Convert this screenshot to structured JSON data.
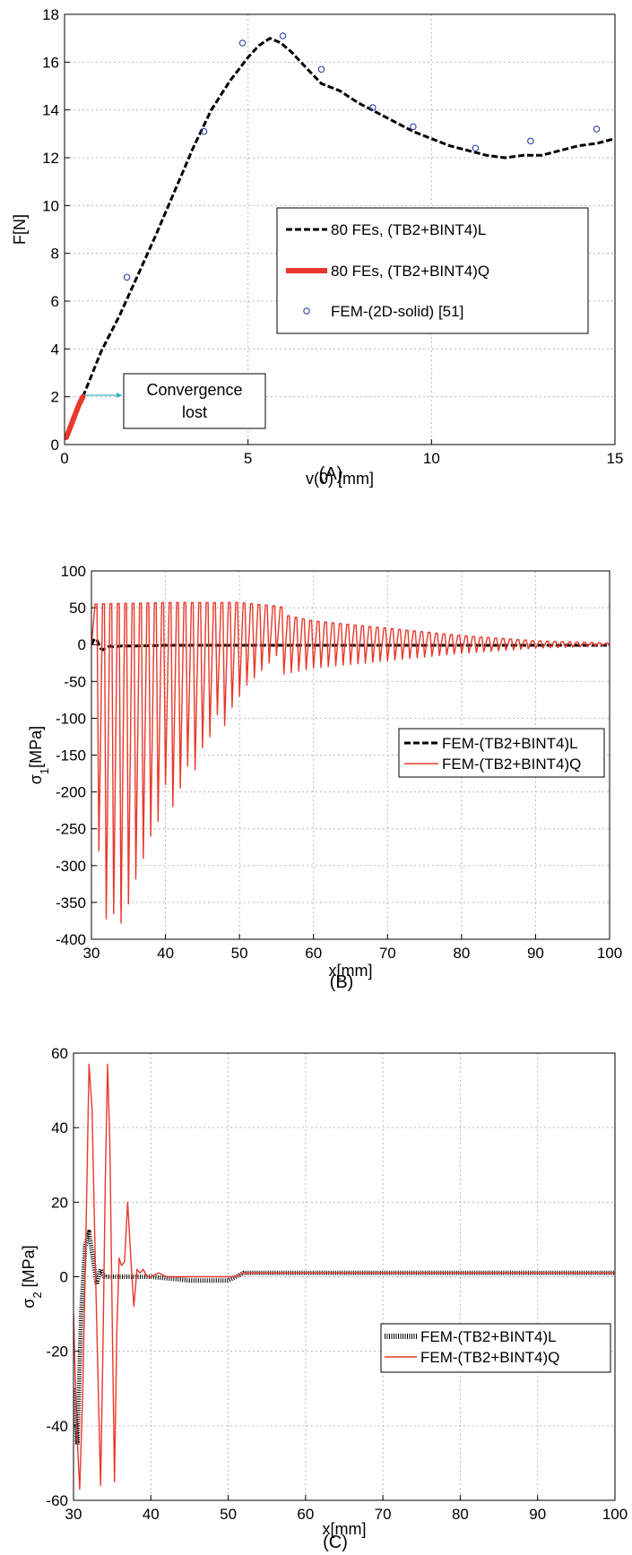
{
  "chart_data": [
    {
      "panel": "A",
      "type": "line",
      "caption": "(A)",
      "xlabel": "v(0) [mm]",
      "ylabel": "F[N]",
      "xlim": [
        0,
        15
      ],
      "ylim": [
        0,
        18
      ],
      "xticks": [
        0,
        5,
        10,
        15
      ],
      "yticks": [
        0,
        2,
        4,
        6,
        8,
        10,
        12,
        14,
        16,
        18
      ],
      "grid": true,
      "legend_position": "center-right",
      "annotation": {
        "lines": [
          "Convergence",
          "lost"
        ],
        "color": "#39b6c8"
      },
      "series": [
        {
          "name": "80 FEs, (TB2+BINT4)L",
          "style": "dashed",
          "color": "#000000",
          "x": [
            0.5,
            1.0,
            1.5,
            2.0,
            2.5,
            3.0,
            3.5,
            4.0,
            4.5,
            5.0,
            5.3,
            5.6,
            5.9,
            6.2,
            6.5,
            7.0,
            7.5,
            8.0,
            8.5,
            9.0,
            9.5,
            10.0,
            10.5,
            11.0,
            11.5,
            12.0,
            12.5,
            13.0,
            13.5,
            14.0,
            14.5,
            15.0
          ],
          "y": [
            2.0,
            3.9,
            5.4,
            7.1,
            8.8,
            10.6,
            12.4,
            14.0,
            15.2,
            16.2,
            16.7,
            17.0,
            16.8,
            16.4,
            15.9,
            15.1,
            14.8,
            14.3,
            13.9,
            13.5,
            13.1,
            12.8,
            12.5,
            12.3,
            12.1,
            12.0,
            12.1,
            12.1,
            12.3,
            12.5,
            12.6,
            12.8
          ]
        },
        {
          "name": "80 FEs, (TB2+BINT4)Q",
          "style": "thick-solid",
          "color": "#e8382b",
          "x": [
            0.05,
            0.1,
            0.2,
            0.3,
            0.4,
            0.5
          ],
          "y": [
            0.3,
            0.5,
            0.9,
            1.3,
            1.7,
            2.0
          ]
        },
        {
          "name": "FEM-(2D-solid) [51]",
          "style": "markers",
          "color": "#3040a8",
          "x": [
            1.7,
            3.8,
            4.85,
            5.95,
            7.0,
            8.4,
            9.5,
            11.2,
            12.7,
            14.5
          ],
          "y": [
            7.0,
            13.1,
            16.8,
            17.1,
            15.7,
            14.1,
            13.3,
            12.4,
            12.7,
            13.2
          ]
        }
      ]
    },
    {
      "panel": "B",
      "type": "line",
      "caption": "(B)",
      "xlabel": "x[mm]",
      "ylabel": "σ1[MPa]",
      "ylabel_main": "σ",
      "ylabel_sub": "1",
      "ylabel_unit": "[MPa]",
      "xlim": [
        30,
        100
      ],
      "ylim": [
        -400,
        100
      ],
      "xticks": [
        30,
        40,
        50,
        60,
        70,
        80,
        90,
        100
      ],
      "yticks": [
        -400,
        -350,
        -300,
        -250,
        -200,
        -150,
        -100,
        -50,
        0,
        50,
        100
      ],
      "grid": true,
      "legend_position": "center-right",
      "series": [
        {
          "name": "FEM-(TB2+BINT4)L",
          "style": "dashed",
          "color": "#000000",
          "x": [
            30.0,
            30.4,
            30.8,
            31.2,
            31.6,
            32.0,
            32.5,
            33.0,
            34.0,
            36.0,
            40.0,
            50.0,
            60.0,
            70.0,
            80.0,
            90.0,
            100.0
          ],
          "y": [
            0,
            8,
            5,
            -5,
            -7,
            -4,
            -2,
            -3,
            -2,
            -2,
            -1,
            -1,
            -1,
            -1,
            -1,
            -1,
            -1
          ]
        },
        {
          "name": "FEM-(TB2+BINT4)Q",
          "style": "thin-solid",
          "color": "#e8382b",
          "oscillation": {
            "x_start": 30.5,
            "period": 1.0,
            "upper_x": [
              30,
              40,
              50,
              55,
              60,
              70,
              80,
              90,
              100
            ],
            "upper_y": [
              55,
              57,
              57,
              52,
              42,
              30,
              15,
              5,
              0
            ],
            "trough_x": [
              31.0,
              32.0,
              33.0,
              34.0,
              35.0,
              36.0,
              37.0,
              38.0,
              39.0,
              40.0,
              41.0,
              42.0,
              43.0,
              44.0,
              45.0,
              46.0,
              47.0,
              48.0,
              49.0,
              50.0,
              51.0,
              52.0,
              53.0,
              54.0,
              55.0
            ],
            "trough_y": [
              -280,
              -372,
              -365,
              -378,
              -352,
              -318,
              -290,
              -260,
              -240,
              -190,
              -220,
              -195,
              -165,
              -170,
              -140,
              -125,
              -95,
              -110,
              -85,
              -70,
              -55,
              -45,
              -35,
              -25,
              -15
            ],
            "late_amplitude": [
              [
                56,
                40
              ],
              [
                60,
                32
              ],
              [
                70,
                22
              ],
              [
                80,
                12
              ],
              [
                90,
                5
              ],
              [
                100,
                2
              ]
            ]
          }
        }
      ]
    },
    {
      "panel": "C",
      "type": "line",
      "caption": "(C)",
      "xlabel": "x[mm]",
      "ylabel": "σ2 [MPa]",
      "ylabel_main": "σ",
      "ylabel_sub": "2",
      "ylabel_unit": " [MPa]",
      "xlim": [
        30,
        100
      ],
      "ylim": [
        -60,
        60
      ],
      "xticks": [
        30,
        40,
        50,
        60,
        70,
        80,
        90,
        100
      ],
      "yticks": [
        -60,
        -40,
        -20,
        0,
        20,
        40,
        60
      ],
      "ytick_labels": [
        "-60",
        "-40",
        "-20",
        "0",
        "20",
        "40",
        "60"
      ],
      "grid": true,
      "legend_position": "bottom-right",
      "series": [
        {
          "name": "FEM-(TB2+BINT4)L",
          "style": "hatched",
          "color": "#000000",
          "x": [
            30.0,
            30.5,
            31.0,
            31.5,
            32.0,
            32.5,
            33.0,
            33.5,
            34.0,
            35.0,
            36.0,
            38.0,
            40.0,
            45.0,
            50.0,
            51.0,
            52.0,
            60.0,
            70.0,
            80.0,
            90.0,
            100.0
          ],
          "y": [
            -30,
            -45,
            -10,
            8,
            12,
            5,
            -2,
            2,
            0,
            0,
            0,
            0,
            0,
            -1,
            -1,
            0,
            1,
            1,
            1,
            1,
            1,
            1
          ]
        },
        {
          "name": "FEM-(TB2+BINT4)Q",
          "style": "thin-solid",
          "color": "#e8382b",
          "x": [
            30.0,
            30.4,
            30.8,
            31.2,
            31.6,
            32.0,
            32.4,
            32.8,
            33.2,
            33.5,
            33.8,
            34.1,
            34.4,
            34.7,
            35.0,
            35.3,
            35.6,
            35.9,
            36.2,
            36.6,
            37.0,
            37.4,
            37.8,
            38.2,
            38.6,
            39.0,
            39.5,
            40.0,
            41.0,
            42.0,
            45.0,
            50.0,
            51.0,
            52.0,
            60.0,
            70.0,
            80.0,
            90.0,
            100.0
          ],
          "y": [
            -10,
            -40,
            -57,
            -30,
            10,
            57,
            45,
            5,
            -30,
            -56,
            -20,
            25,
            57,
            35,
            -10,
            -55,
            -15,
            5,
            3,
            4,
            20,
            5,
            -8,
            2,
            1,
            2,
            0,
            0,
            1,
            0,
            0,
            0,
            0,
            1,
            1,
            1,
            1,
            1,
            1
          ]
        }
      ]
    }
  ]
}
